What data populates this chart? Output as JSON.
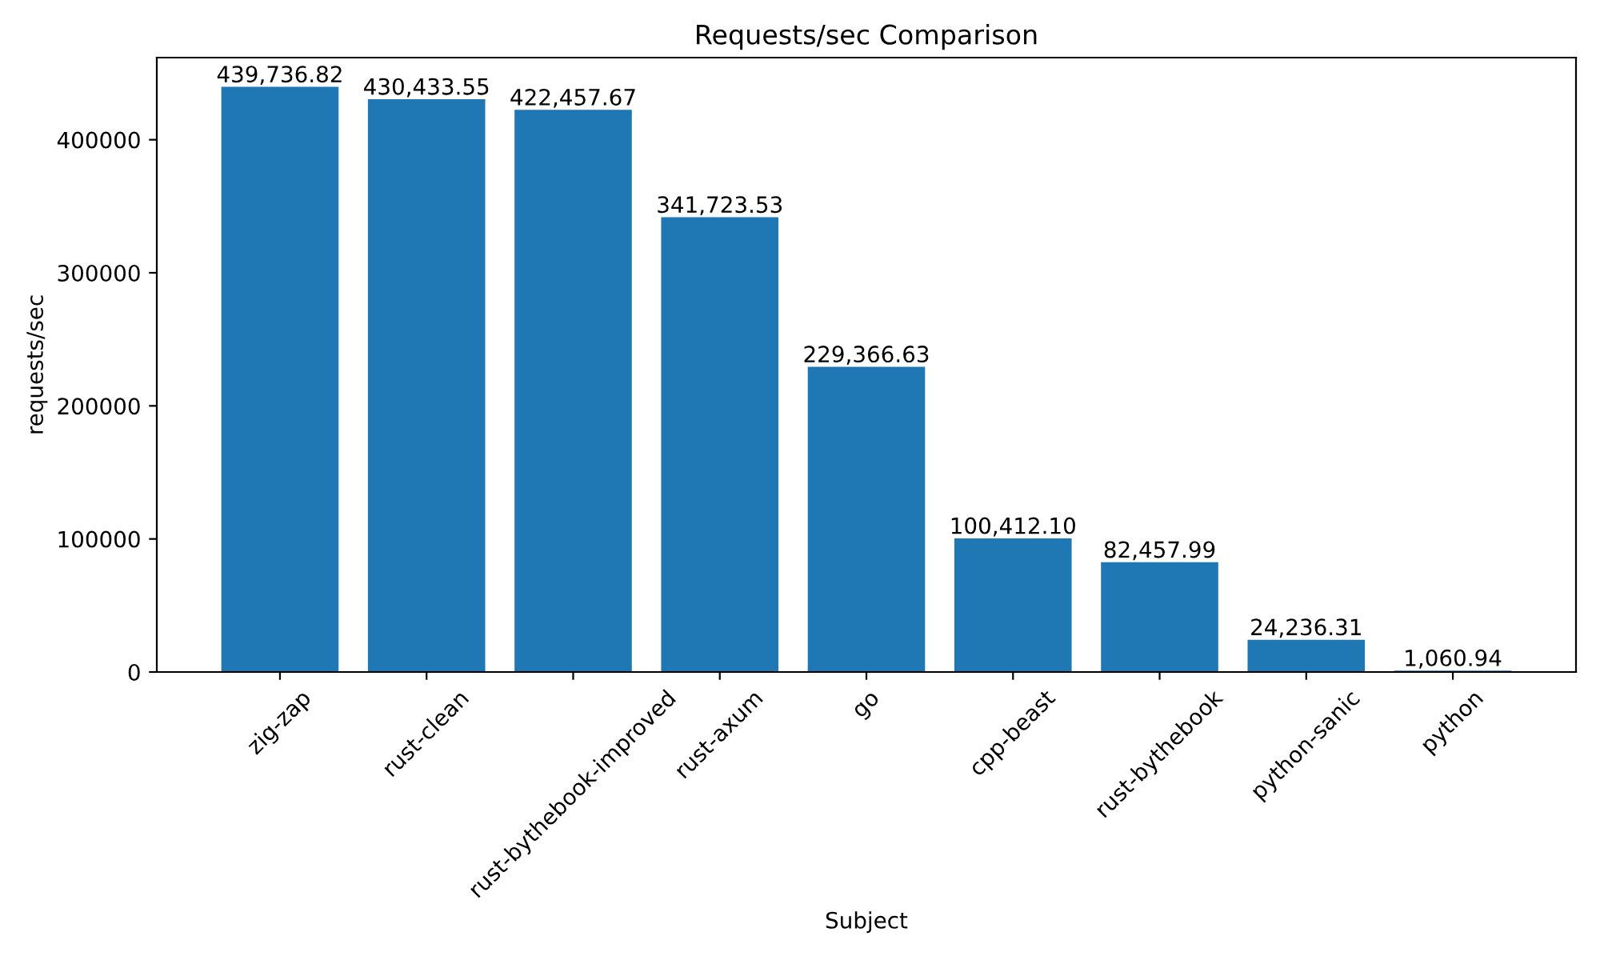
{
  "chart_data": {
    "type": "bar",
    "title": "Requests/sec Comparison",
    "xlabel": "Subject",
    "ylabel": "requests/sec",
    "categories": [
      "zig-zap",
      "rust-clean",
      "rust-bythebook-improved",
      "rust-axum",
      "go",
      "cpp-beast",
      "rust-bythebook",
      "python-sanic",
      "python"
    ],
    "values": [
      439736.82,
      430433.55,
      422457.67,
      341723.53,
      229366.63,
      100412.1,
      82457.99,
      24236.31,
      1060.94
    ],
    "value_labels": [
      "439,736.82",
      "430,433.55",
      "422,457.67",
      "341,723.53",
      "229,366.63",
      "100,412.10",
      "82,457.99",
      "24,236.31",
      "1,060.94"
    ],
    "color": "#1f77b4",
    "ylim": [
      0,
      461723.66
    ],
    "yticks": [
      0,
      100000,
      200000,
      300000,
      400000
    ],
    "grid": false,
    "legend": false
  }
}
